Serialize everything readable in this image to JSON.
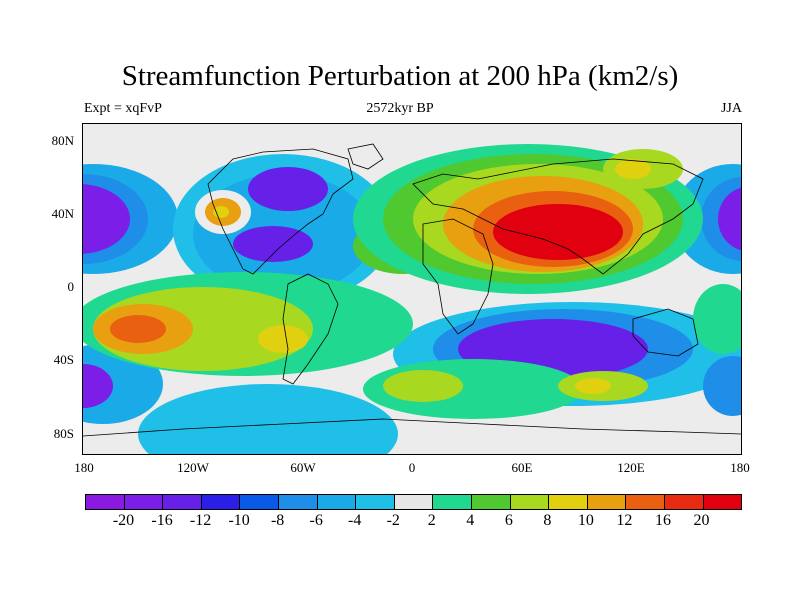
{
  "title": "Streamfunction Perturbation at 200 hPa (km2/s)",
  "left_label": "Expt = xqFvP",
  "center_label": "2572kyr BP",
  "right_label": "JJA",
  "lat_labels": [
    "80N",
    "40N",
    "0",
    "40S",
    "80S"
  ],
  "lon_labels": [
    "180",
    "120W",
    "60W",
    "0",
    "60E",
    "120E",
    "180"
  ],
  "colorbar": {
    "labels": [
      "-20",
      "-16",
      "-12",
      "-10",
      "-8",
      "-6",
      "-4",
      "-2",
      "2",
      "4",
      "6",
      "8",
      "10",
      "12",
      "16",
      "20"
    ],
    "colors": [
      "#8a1ae0",
      "#7a1ee8",
      "#6620e8",
      "#2a1ee8",
      "#0a5ae8",
      "#1e8ee8",
      "#1aaae8",
      "#20bfe8",
      "#e6e6e6",
      "#20d890",
      "#50c830",
      "#a8d820",
      "#e0d010",
      "#e8a010",
      "#e86010",
      "#e82a10",
      "#e00010"
    ]
  },
  "colors": {
    "background_zero": "#ececec"
  }
}
